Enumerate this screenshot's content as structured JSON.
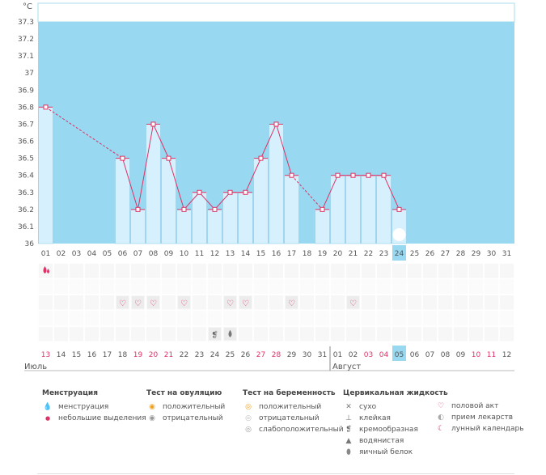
{
  "chart_data": {
    "type": "bar",
    "unit_label": "°С",
    "y_ticks": [
      "37.3",
      "37.2",
      "37.1",
      "37",
      "36.9",
      "36.8",
      "36.7",
      "36.6",
      "36.5",
      "36.4",
      "36.3",
      "36.2",
      "36.1",
      "36"
    ],
    "ylim": [
      36.0,
      37.3
    ],
    "cycle_days": [
      "01",
      "02",
      "03",
      "04",
      "05",
      "06",
      "07",
      "08",
      "09",
      "10",
      "11",
      "12",
      "13",
      "14",
      "15",
      "16",
      "17",
      "18",
      "19",
      "20",
      "21",
      "22",
      "23",
      "24",
      "25",
      "26",
      "27",
      "28",
      "29",
      "30",
      "31"
    ],
    "current_cycle_day": "24",
    "temperatures": [
      36.8,
      null,
      null,
      null,
      null,
      36.5,
      36.2,
      36.7,
      36.5,
      36.2,
      36.3,
      36.2,
      36.3,
      36.3,
      36.5,
      36.7,
      36.4,
      null,
      36.2,
      36.4,
      36.4,
      36.4,
      36.4,
      36.2,
      null,
      null,
      null,
      null,
      null,
      null,
      null
    ],
    "dashed_segments": [
      [
        0,
        5
      ],
      [
        16,
        18
      ]
    ],
    "calendar_dates": [
      "13",
      "14",
      "15",
      "16",
      "17",
      "18",
      "19",
      "20",
      "21",
      "22",
      "23",
      "24",
      "25",
      "26",
      "27",
      "28",
      "29",
      "30",
      "31",
      "01",
      "02",
      "03",
      "04",
      "05",
      "06",
      "07",
      "08",
      "09",
      "10",
      "11",
      "12"
    ],
    "weekend_date_indices": [
      0,
      6,
      7,
      8,
      14,
      15,
      21,
      22,
      28,
      29
    ],
    "today_date_index": 23,
    "months": [
      "Июль",
      "Август"
    ],
    "menstruation_days": [
      0
    ],
    "intercourse_days": [
      5,
      6,
      7,
      9,
      12,
      13,
      16,
      20
    ],
    "cervical_creamy_days": [
      11
    ],
    "cervical_watery_days": [
      12
    ],
    "lunar_days": [
      23
    ]
  },
  "legend": {
    "menstruation": {
      "title": "Менструация",
      "items": [
        "менструация",
        "небольшие выделения"
      ]
    },
    "ovulation": {
      "title": "Тест на овуляцию",
      "items": [
        "положительный",
        "отрицательный"
      ]
    },
    "pregnancy": {
      "title": "Тест на беременность",
      "items": [
        "положительный",
        "отрицательный",
        "слабоположительный"
      ]
    },
    "cervical": {
      "title": "Цервикальная жидкость",
      "items": [
        "сухо",
        "клейкая",
        "кремообразная",
        "водянистая",
        "яичный белок"
      ]
    },
    "other": {
      "items": [
        "половой акт",
        "прием лекарств",
        "лунный календарь"
      ]
    }
  },
  "colors": {
    "sky": "#98d8f0",
    "bar": "#d6f0fd",
    "line": "#dd3366",
    "weekend": "#dd3366"
  }
}
